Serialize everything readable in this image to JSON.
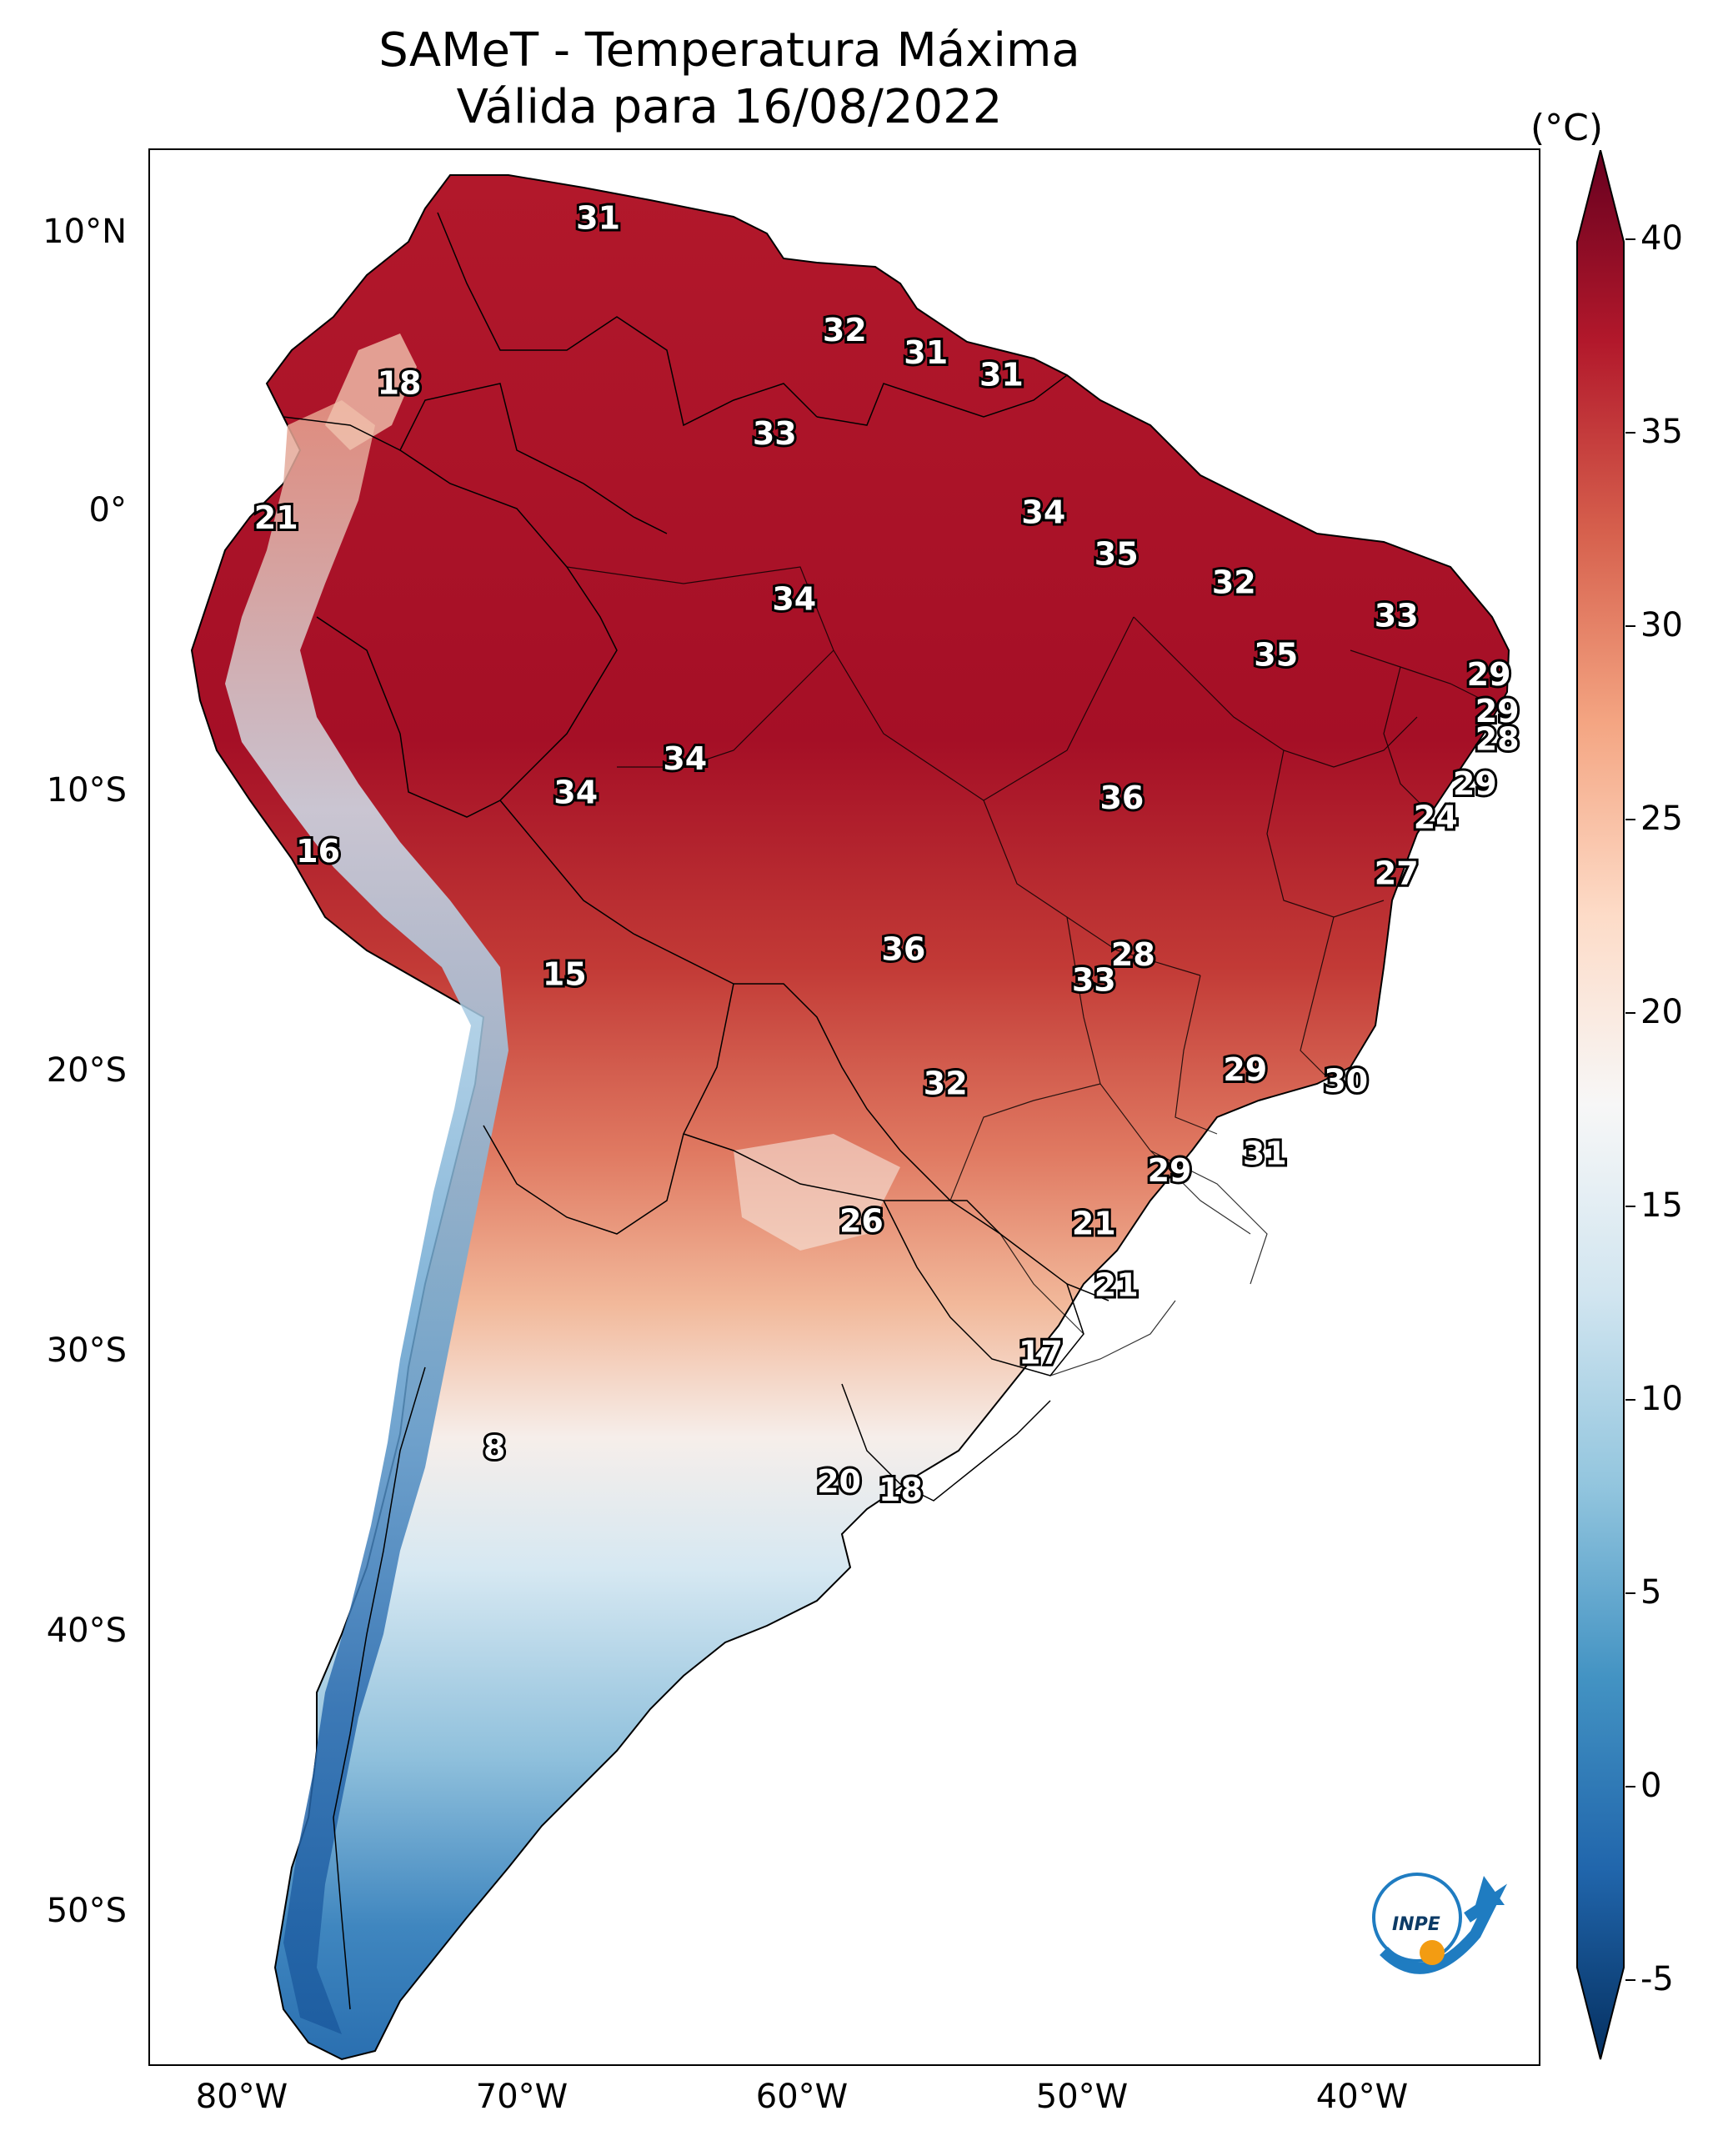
{
  "title": {
    "line1": "SAMeT - Temperatura Máxima",
    "line2": "Válida para 16/08/2022"
  },
  "axes": {
    "lat_labels": [
      "10°N",
      "0°",
      "10°S",
      "20°S",
      "30°S",
      "40°S",
      "50°S"
    ],
    "lon_labels": [
      "80°W",
      "70°W",
      "60°W",
      "50°W",
      "40°W"
    ]
  },
  "colorbar": {
    "unit": "(°C)",
    "ticks": [
      "40",
      "35",
      "30",
      "25",
      "20",
      "15",
      "10",
      "5",
      "0",
      "-5"
    ],
    "colors": [
      "#053061",
      "#2166ac",
      "#4393c3",
      "#92c5de",
      "#d1e5f0",
      "#f7f7f7",
      "#fddbc7",
      "#f4a582",
      "#d6604d",
      "#b2182b",
      "#67001f"
    ]
  },
  "stations": [
    {
      "value": "31",
      "lon": -67.0,
      "lat": 10.5
    },
    {
      "value": "32",
      "lon": -58.2,
      "lat": 6.5
    },
    {
      "value": "31",
      "lon": -55.3,
      "lat": 5.7
    },
    {
      "value": "31",
      "lon": -52.6,
      "lat": 4.9
    },
    {
      "value": "18",
      "lon": -74.1,
      "lat": 4.6
    },
    {
      "value": "33",
      "lon": -60.7,
      "lat": 2.8
    },
    {
      "value": "21",
      "lon": -78.5,
      "lat": -0.2
    },
    {
      "value": "34",
      "lon": -51.1,
      "lat": 0.0
    },
    {
      "value": "35",
      "lon": -48.5,
      "lat": -1.5
    },
    {
      "value": "32",
      "lon": -44.3,
      "lat": -2.5
    },
    {
      "value": "34",
      "lon": -60.0,
      "lat": -3.1
    },
    {
      "value": "33",
      "lon": -38.5,
      "lat": -3.7
    },
    {
      "value": "35",
      "lon": -42.8,
      "lat": -5.1
    },
    {
      "value": "29",
      "lon": -35.2,
      "lat": -5.8
    },
    {
      "value": "29",
      "lon": -34.9,
      "lat": -7.1
    },
    {
      "value": "28",
      "lon": -34.9,
      "lat": -8.1
    },
    {
      "value": "34",
      "lon": -63.9,
      "lat": -8.8
    },
    {
      "value": "34",
      "lon": -67.8,
      "lat": -10.0
    },
    {
      "value": "36",
      "lon": -48.3,
      "lat": -10.2
    },
    {
      "value": "29",
      "lon": -35.7,
      "lat": -9.7
    },
    {
      "value": "24",
      "lon": -37.1,
      "lat": -10.9
    },
    {
      "value": "16",
      "lon": -77.0,
      "lat": -12.1
    },
    {
      "value": "27",
      "lon": -38.5,
      "lat": -12.9
    },
    {
      "value": "36",
      "lon": -56.1,
      "lat": -15.6
    },
    {
      "value": "28",
      "lon": -47.9,
      "lat": -15.8
    },
    {
      "value": "15",
      "lon": -68.2,
      "lat": -16.5
    },
    {
      "value": "33",
      "lon": -49.3,
      "lat": -16.7
    },
    {
      "value": "29",
      "lon": -43.9,
      "lat": -19.9
    },
    {
      "value": "30",
      "lon": -40.3,
      "lat": -20.3
    },
    {
      "value": "32",
      "lon": -54.6,
      "lat": -20.4
    },
    {
      "value": "31",
      "lon": -43.2,
      "lat": -22.9
    },
    {
      "value": "29",
      "lon": -46.6,
      "lat": -23.5
    },
    {
      "value": "26",
      "lon": -57.6,
      "lat": -25.3
    },
    {
      "value": "21",
      "lon": -49.3,
      "lat": -25.4
    },
    {
      "value": "21",
      "lon": -48.5,
      "lat": -27.6
    },
    {
      "value": "17",
      "lon": -51.2,
      "lat": -30.0
    },
    {
      "value": "8",
      "lon": -70.7,
      "lat": -33.4
    },
    {
      "value": "20",
      "lon": -58.4,
      "lat": -34.6
    },
    {
      "value": "18",
      "lon": -56.2,
      "lat": -34.9
    }
  ]
}
